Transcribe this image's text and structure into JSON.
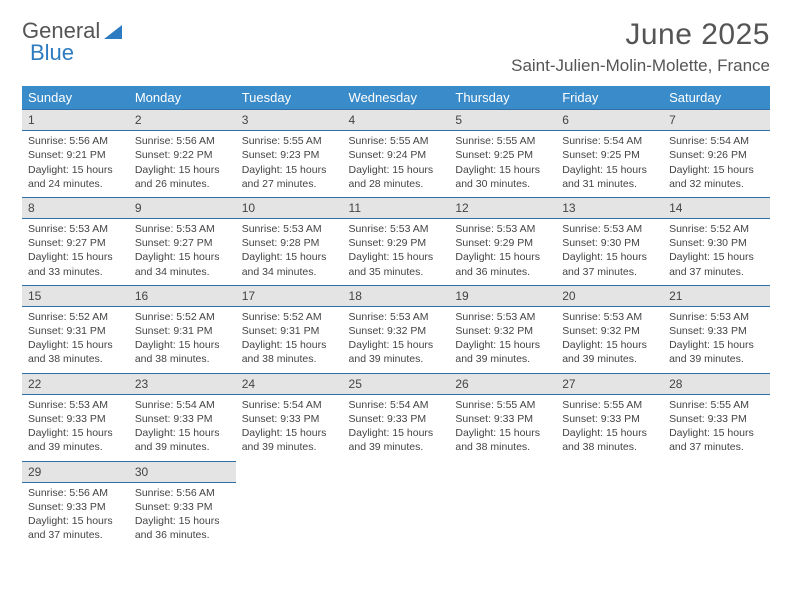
{
  "header": {
    "logo_general": "General",
    "logo_blue": "Blue",
    "month_title": "June 2025",
    "location": "Saint-Julien-Molin-Molette, France"
  },
  "style": {
    "header_bg": "#3a8bc9",
    "daybar_bg": "#e4e4e4",
    "daybar_border": "#2f6fa3",
    "page_bg": "#ffffff"
  },
  "calendar": {
    "day_headers": [
      "Sunday",
      "Monday",
      "Tuesday",
      "Wednesday",
      "Thursday",
      "Friday",
      "Saturday"
    ],
    "weeks": [
      [
        {
          "num": "1",
          "sunrise": "Sunrise: 5:56 AM",
          "sunset": "Sunset: 9:21 PM",
          "daylight": "Daylight: 15 hours and 24 minutes."
        },
        {
          "num": "2",
          "sunrise": "Sunrise: 5:56 AM",
          "sunset": "Sunset: 9:22 PM",
          "daylight": "Daylight: 15 hours and 26 minutes."
        },
        {
          "num": "3",
          "sunrise": "Sunrise: 5:55 AM",
          "sunset": "Sunset: 9:23 PM",
          "daylight": "Daylight: 15 hours and 27 minutes."
        },
        {
          "num": "4",
          "sunrise": "Sunrise: 5:55 AM",
          "sunset": "Sunset: 9:24 PM",
          "daylight": "Daylight: 15 hours and 28 minutes."
        },
        {
          "num": "5",
          "sunrise": "Sunrise: 5:55 AM",
          "sunset": "Sunset: 9:25 PM",
          "daylight": "Daylight: 15 hours and 30 minutes."
        },
        {
          "num": "6",
          "sunrise": "Sunrise: 5:54 AM",
          "sunset": "Sunset: 9:25 PM",
          "daylight": "Daylight: 15 hours and 31 minutes."
        },
        {
          "num": "7",
          "sunrise": "Sunrise: 5:54 AM",
          "sunset": "Sunset: 9:26 PM",
          "daylight": "Daylight: 15 hours and 32 minutes."
        }
      ],
      [
        {
          "num": "8",
          "sunrise": "Sunrise: 5:53 AM",
          "sunset": "Sunset: 9:27 PM",
          "daylight": "Daylight: 15 hours and 33 minutes."
        },
        {
          "num": "9",
          "sunrise": "Sunrise: 5:53 AM",
          "sunset": "Sunset: 9:27 PM",
          "daylight": "Daylight: 15 hours and 34 minutes."
        },
        {
          "num": "10",
          "sunrise": "Sunrise: 5:53 AM",
          "sunset": "Sunset: 9:28 PM",
          "daylight": "Daylight: 15 hours and 34 minutes."
        },
        {
          "num": "11",
          "sunrise": "Sunrise: 5:53 AM",
          "sunset": "Sunset: 9:29 PM",
          "daylight": "Daylight: 15 hours and 35 minutes."
        },
        {
          "num": "12",
          "sunrise": "Sunrise: 5:53 AM",
          "sunset": "Sunset: 9:29 PM",
          "daylight": "Daylight: 15 hours and 36 minutes."
        },
        {
          "num": "13",
          "sunrise": "Sunrise: 5:53 AM",
          "sunset": "Sunset: 9:30 PM",
          "daylight": "Daylight: 15 hours and 37 minutes."
        },
        {
          "num": "14",
          "sunrise": "Sunrise: 5:52 AM",
          "sunset": "Sunset: 9:30 PM",
          "daylight": "Daylight: 15 hours and 37 minutes."
        }
      ],
      [
        {
          "num": "15",
          "sunrise": "Sunrise: 5:52 AM",
          "sunset": "Sunset: 9:31 PM",
          "daylight": "Daylight: 15 hours and 38 minutes."
        },
        {
          "num": "16",
          "sunrise": "Sunrise: 5:52 AM",
          "sunset": "Sunset: 9:31 PM",
          "daylight": "Daylight: 15 hours and 38 minutes."
        },
        {
          "num": "17",
          "sunrise": "Sunrise: 5:52 AM",
          "sunset": "Sunset: 9:31 PM",
          "daylight": "Daylight: 15 hours and 38 minutes."
        },
        {
          "num": "18",
          "sunrise": "Sunrise: 5:53 AM",
          "sunset": "Sunset: 9:32 PM",
          "daylight": "Daylight: 15 hours and 39 minutes."
        },
        {
          "num": "19",
          "sunrise": "Sunrise: 5:53 AM",
          "sunset": "Sunset: 9:32 PM",
          "daylight": "Daylight: 15 hours and 39 minutes."
        },
        {
          "num": "20",
          "sunrise": "Sunrise: 5:53 AM",
          "sunset": "Sunset: 9:32 PM",
          "daylight": "Daylight: 15 hours and 39 minutes."
        },
        {
          "num": "21",
          "sunrise": "Sunrise: 5:53 AM",
          "sunset": "Sunset: 9:33 PM",
          "daylight": "Daylight: 15 hours and 39 minutes."
        }
      ],
      [
        {
          "num": "22",
          "sunrise": "Sunrise: 5:53 AM",
          "sunset": "Sunset: 9:33 PM",
          "daylight": "Daylight: 15 hours and 39 minutes."
        },
        {
          "num": "23",
          "sunrise": "Sunrise: 5:54 AM",
          "sunset": "Sunset: 9:33 PM",
          "daylight": "Daylight: 15 hours and 39 minutes."
        },
        {
          "num": "24",
          "sunrise": "Sunrise: 5:54 AM",
          "sunset": "Sunset: 9:33 PM",
          "daylight": "Daylight: 15 hours and 39 minutes."
        },
        {
          "num": "25",
          "sunrise": "Sunrise: 5:54 AM",
          "sunset": "Sunset: 9:33 PM",
          "daylight": "Daylight: 15 hours and 39 minutes."
        },
        {
          "num": "26",
          "sunrise": "Sunrise: 5:55 AM",
          "sunset": "Sunset: 9:33 PM",
          "daylight": "Daylight: 15 hours and 38 minutes."
        },
        {
          "num": "27",
          "sunrise": "Sunrise: 5:55 AM",
          "sunset": "Sunset: 9:33 PM",
          "daylight": "Daylight: 15 hours and 38 minutes."
        },
        {
          "num": "28",
          "sunrise": "Sunrise: 5:55 AM",
          "sunset": "Sunset: 9:33 PM",
          "daylight": "Daylight: 15 hours and 37 minutes."
        }
      ],
      [
        {
          "num": "29",
          "sunrise": "Sunrise: 5:56 AM",
          "sunset": "Sunset: 9:33 PM",
          "daylight": "Daylight: 15 hours and 37 minutes."
        },
        {
          "num": "30",
          "sunrise": "Sunrise: 5:56 AM",
          "sunset": "Sunset: 9:33 PM",
          "daylight": "Daylight: 15 hours and 36 minutes."
        },
        null,
        null,
        null,
        null,
        null
      ]
    ]
  }
}
